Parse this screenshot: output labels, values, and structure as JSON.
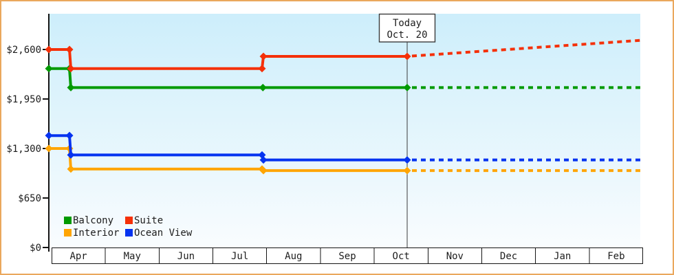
{
  "chart_data": {
    "type": "line",
    "title": "",
    "today": {
      "label": "Today",
      "date": "Oct. 20",
      "month_position": 6.613
    },
    "x_axis": {
      "unit": "months from Apr 1",
      "months": [
        "Apr",
        "May",
        "Jun",
        "Jul",
        "Aug",
        "Sep",
        "Oct",
        "Nov",
        "Dec",
        "Jan",
        "Feb"
      ],
      "projection_end": 10.95
    },
    "y_axis": {
      "unit": "USD",
      "range": [
        0,
        3050
      ],
      "ticks": [
        {
          "value": 0,
          "label": "$0"
        },
        {
          "value": 650,
          "label": "$650"
        },
        {
          "value": 1300,
          "label": "$1,300"
        },
        {
          "value": 1950,
          "label": "$1,950"
        },
        {
          "value": 2600,
          "label": "$2,600"
        }
      ]
    },
    "series": [
      {
        "name": "Balcony",
        "color": "#009a00",
        "solid": [
          [
            0,
            2350
          ],
          [
            0.333,
            2350
          ],
          [
            0.358,
            2100
          ],
          [
            3.93,
            2100
          ],
          [
            6.613,
            2100
          ]
        ],
        "dotted": [
          [
            6.613,
            2100
          ],
          [
            10.95,
            2100
          ]
        ]
      },
      {
        "name": "Suite",
        "color": "#f53008",
        "solid": [
          [
            0,
            2600
          ],
          [
            0.333,
            2600
          ],
          [
            0.358,
            2350
          ],
          [
            3.914,
            2350
          ],
          [
            3.94,
            2510
          ],
          [
            6.613,
            2510
          ]
        ],
        "dotted": [
          [
            6.613,
            2510
          ],
          [
            10.95,
            2720
          ]
        ]
      },
      {
        "name": "Interior",
        "color": "#ffa502",
        "solid": [
          [
            0,
            1300
          ],
          [
            0.333,
            1300
          ],
          [
            0.358,
            1030
          ],
          [
            3.914,
            1030
          ],
          [
            3.94,
            1010
          ],
          [
            6.613,
            1010
          ]
        ],
        "dotted": [
          [
            6.613,
            1010
          ],
          [
            10.95,
            1010
          ]
        ]
      },
      {
        "name": "Ocean View",
        "color": "#0533f0",
        "solid": [
          [
            0,
            1470
          ],
          [
            0.333,
            1470
          ],
          [
            0.358,
            1215
          ],
          [
            3.914,
            1215
          ],
          [
            3.94,
            1150
          ],
          [
            6.613,
            1150
          ]
        ],
        "dotted": [
          [
            6.613,
            1150
          ],
          [
            10.95,
            1150
          ]
        ]
      }
    ],
    "draw_order": [
      0,
      2,
      3,
      1
    ],
    "legend_position": "bottom-left",
    "colors": {
      "frame_border": "#eaa75c",
      "plot_bg_top": "#cdeefb",
      "plot_bg_bottom": "#f9fcfe",
      "axis": "#141414",
      "today_line": "#3a3a3a"
    }
  }
}
